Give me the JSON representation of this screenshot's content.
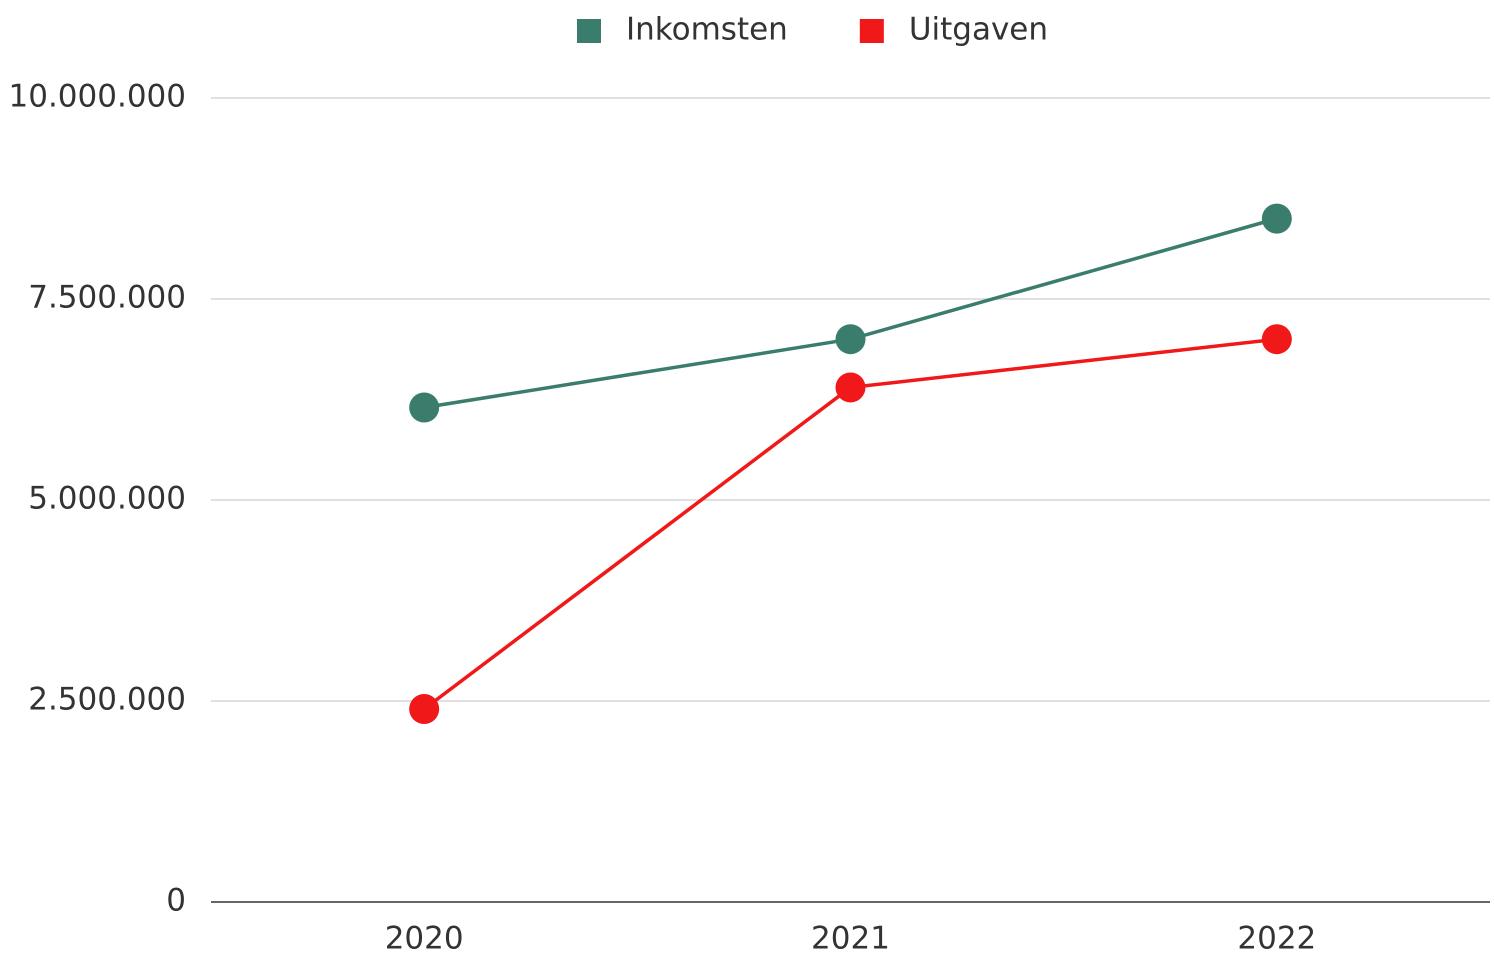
{
  "chart_data": {
    "type": "line",
    "categories": [
      "2020",
      "2021",
      "2022"
    ],
    "series": [
      {
        "name": "Inkomsten",
        "color": "#3a7d6c",
        "values": [
          6150000,
          7000000,
          8500000
        ]
      },
      {
        "name": "Uitgaven",
        "color": "#f01818",
        "values": [
          2400000,
          6400000,
          7000000
        ]
      }
    ],
    "ylim": [
      0,
      10000000
    ],
    "yticks": [
      0,
      {
        "value": 2500000,
        "label": "2.500.000"
      },
      {
        "value": 5000000,
        "label": "5.000.000"
      },
      {
        "value": 7500000,
        "label": "7.500.000"
      },
      {
        "value": 10000000,
        "label": "10.000.000"
      }
    ],
    "grid": true,
    "legend": "top"
  }
}
